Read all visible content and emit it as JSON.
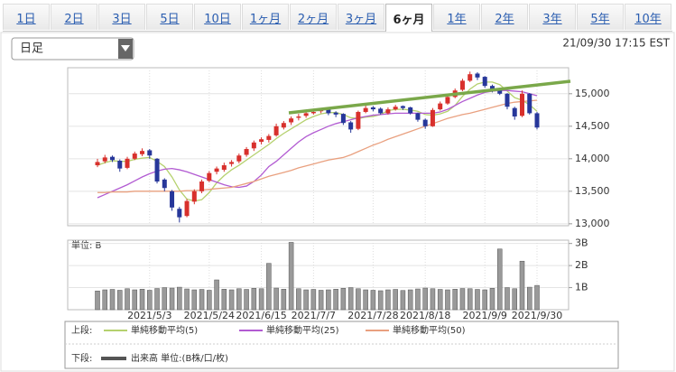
{
  "tabs": [
    "1日",
    "2日",
    "3日",
    "5日",
    "10日",
    "1ヶ月",
    "2ヶ月",
    "3ヶ月",
    "6ヶ月",
    "1年",
    "2年",
    "3年",
    "5年",
    "10年"
  ],
  "active_tab": 8,
  "timeframe_select": "日足",
  "timestamp": "21/09/30 17:15 EST",
  "chart_data": {
    "type": "candlestick",
    "categories": [
      null,
      null,
      null,
      null,
      null,
      null,
      null,
      "2021/5/3",
      null,
      null,
      null,
      null,
      null,
      null,
      null,
      "2021/5/24",
      null,
      null,
      null,
      null,
      null,
      null,
      "2021/6/15",
      null,
      null,
      null,
      null,
      null,
      null,
      "2021/7/7",
      null,
      null,
      null,
      null,
      null,
      null,
      null,
      "2021/7/28",
      null,
      null,
      null,
      null,
      null,
      null,
      "2021/8/18",
      null,
      null,
      null,
      null,
      null,
      null,
      null,
      "2021/9/9",
      null,
      null,
      null,
      null,
      null,
      null,
      "2021/9/30"
    ],
    "ohlc": [
      [
        13900,
        14000,
        13870,
        13950
      ],
      [
        13960,
        14060,
        13930,
        14020
      ],
      [
        14030,
        14050,
        13950,
        13980
      ],
      [
        13970,
        13990,
        13800,
        13850
      ],
      [
        13860,
        14030,
        13840,
        14000
      ],
      [
        14000,
        14110,
        13980,
        14080
      ],
      [
        14070,
        14160,
        14040,
        14120
      ],
      [
        14130,
        14150,
        14000,
        14050
      ],
      [
        14000,
        14010,
        13620,
        13650
      ],
      [
        13680,
        13700,
        13500,
        13550
      ],
      [
        13500,
        13520,
        13200,
        13250
      ],
      [
        13230,
        13260,
        13020,
        13100
      ],
      [
        13120,
        13380,
        13100,
        13350
      ],
      [
        13340,
        13530,
        13300,
        13500
      ],
      [
        13500,
        13680,
        13470,
        13650
      ],
      [
        13660,
        13810,
        13640,
        13780
      ],
      [
        13800,
        13880,
        13760,
        13850
      ],
      [
        13830,
        13940,
        13800,
        13900
      ],
      [
        13920,
        13980,
        13880,
        13950
      ],
      [
        13960,
        14080,
        13930,
        14050
      ],
      [
        14060,
        14180,
        14030,
        14150
      ],
      [
        14160,
        14280,
        14120,
        14250
      ],
      [
        14260,
        14330,
        14220,
        14300
      ],
      [
        14290,
        14380,
        14250,
        14350
      ],
      [
        14360,
        14540,
        14340,
        14500
      ],
      [
        14480,
        14580,
        14450,
        14550
      ],
      [
        14560,
        14650,
        14520,
        14620
      ],
      [
        14630,
        14690,
        14590,
        14650
      ],
      [
        14660,
        14740,
        14630,
        14700
      ],
      [
        14700,
        14760,
        14680,
        14720
      ],
      [
        14730,
        14780,
        14700,
        14750
      ],
      [
        14760,
        14770,
        14670,
        14700
      ],
      [
        14710,
        14730,
        14640,
        14680
      ],
      [
        14690,
        14700,
        14520,
        14550
      ],
      [
        14560,
        14580,
        14400,
        14450
      ],
      [
        14460,
        14740,
        14440,
        14720
      ],
      [
        14720,
        14820,
        14700,
        14780
      ],
      [
        14790,
        14810,
        14730,
        14760
      ],
      [
        14770,
        14790,
        14680,
        14700
      ],
      [
        14700,
        14790,
        14680,
        14760
      ],
      [
        14760,
        14830,
        14740,
        14800
      ],
      [
        14810,
        14820,
        14750,
        14780
      ],
      [
        14790,
        14800,
        14680,
        14700
      ],
      [
        14700,
        14710,
        14570,
        14600
      ],
      [
        14600,
        14620,
        14460,
        14500
      ],
      [
        14500,
        14780,
        14490,
        14750
      ],
      [
        14760,
        14880,
        14740,
        14850
      ],
      [
        14850,
        14980,
        14830,
        14950
      ],
      [
        14950,
        15080,
        14930,
        15050
      ],
      [
        15060,
        15230,
        15040,
        15200
      ],
      [
        15200,
        15340,
        15180,
        15300
      ],
      [
        15310,
        15330,
        15210,
        15250
      ],
      [
        15260,
        15270,
        15090,
        15120
      ],
      [
        15120,
        15140,
        15020,
        15050
      ],
      [
        15060,
        15080,
        14980,
        15000
      ],
      [
        15000,
        15010,
        14760,
        14800
      ],
      [
        14780,
        14800,
        14600,
        14650
      ],
      [
        14660,
        15050,
        14640,
        15000
      ],
      [
        15000,
        15010,
        14680,
        14700
      ],
      [
        14700,
        14720,
        14450,
        14480
      ]
    ],
    "up_color": "#d8302c",
    "down_color": "#27379a",
    "ylim": [
      12970,
      15400
    ],
    "yticks": [
      {
        "value": 13000,
        "label": "13,000"
      },
      {
        "value": 13500,
        "label": "13,500"
      },
      {
        "value": 14000,
        "label": "14,000"
      },
      {
        "value": 14500,
        "label": "14,500"
      },
      {
        "value": 15000,
        "label": "15,000"
      }
    ],
    "grid": true,
    "upper_legend_label": "上段:",
    "lower_legend_label": "下段:",
    "series": [
      {
        "name": "単純移動平均(5)",
        "color": "#b5d16e",
        "values": [
          13900,
          13940,
          13970,
          13960,
          13960,
          13990,
          14010,
          14020,
          13960,
          13880,
          13720,
          13520,
          13380,
          13350,
          13370,
          13480,
          13630,
          13740,
          13830,
          13900,
          13980,
          14060,
          14140,
          14220,
          14310,
          14390,
          14460,
          14530,
          14600,
          14650,
          14690,
          14710,
          14710,
          14680,
          14630,
          14620,
          14640,
          14650,
          14680,
          14740,
          14760,
          14760,
          14750,
          14730,
          14680,
          14670,
          14690,
          14730,
          14820,
          14960,
          15070,
          15150,
          15180,
          15180,
          15140,
          15040,
          14940,
          14900,
          14830,
          14730
        ]
      },
      {
        "name": "単純移動平均(25)",
        "color": "#b25bd2",
        "values": [
          13400,
          13450,
          13500,
          13550,
          13600,
          13660,
          13720,
          13770,
          13810,
          13840,
          13850,
          13830,
          13800,
          13760,
          13720,
          13680,
          13640,
          13600,
          13570,
          13560,
          13580,
          13650,
          13750,
          13880,
          13960,
          14060,
          14160,
          14260,
          14340,
          14400,
          14450,
          14500,
          14540,
          14570,
          14600,
          14630,
          14650,
          14670,
          14680,
          14690,
          14700,
          14700,
          14700,
          14700,
          14700,
          14700,
          14720,
          14760,
          14820,
          14880,
          14930,
          14980,
          15020,
          15040,
          15050,
          15050,
          15040,
          15030,
          15000,
          14970
        ]
      },
      {
        "name": "単純移動平均(50)",
        "color": "#e9a07f",
        "values": [
          13480,
          13480,
          13490,
          13490,
          13490,
          13500,
          13500,
          13500,
          13500,
          13500,
          13500,
          13500,
          13510,
          13510,
          13520,
          13530,
          13540,
          13550,
          13560,
          13590,
          13620,
          13650,
          13690,
          13730,
          13760,
          13790,
          13820,
          13860,
          13890,
          13920,
          13950,
          13980,
          14000,
          14020,
          14060,
          14110,
          14160,
          14210,
          14250,
          14300,
          14340,
          14380,
          14420,
          14460,
          14500,
          14540,
          14580,
          14620,
          14650,
          14680,
          14700,
          14730,
          14760,
          14790,
          14820,
          14850,
          14870,
          14880,
          14890,
          14900
        ]
      }
    ],
    "volume": {
      "name": "出来高 単位:(B株/口/枚)",
      "unit_label": "単位: B",
      "color": "#9a9a9a",
      "values": [
        0.85,
        0.9,
        0.92,
        0.88,
        0.95,
        0.9,
        0.93,
        0.88,
        0.96,
        1.0,
        0.98,
        1.02,
        0.94,
        0.9,
        0.92,
        0.88,
        1.35,
        0.93,
        0.9,
        0.95,
        0.92,
        0.97,
        0.95,
        2.1,
        0.98,
        0.93,
        3.05,
        0.95,
        0.9,
        0.92,
        0.88,
        0.9,
        0.93,
        0.97,
        1.0,
        0.95,
        0.9,
        0.88,
        0.86,
        0.9,
        0.92,
        0.87,
        0.9,
        0.94,
        0.98,
        0.95,
        0.92,
        0.9,
        0.93,
        0.96,
        0.95,
        0.92,
        0.9,
        0.97,
        2.75,
        1.0,
        0.95,
        2.2,
        1.02,
        1.1
      ],
      "ylim": [
        0,
        3.15
      ],
      "yticks": [
        {
          "value": 1,
          "label": "1B"
        },
        {
          "value": 2,
          "label": "2B"
        },
        {
          "value": 3,
          "label": "3B"
        }
      ]
    }
  }
}
